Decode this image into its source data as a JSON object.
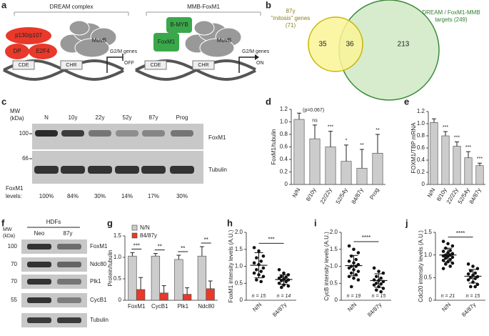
{
  "panel_labels": [
    "a",
    "b",
    "c",
    "d",
    "e",
    "f",
    "g",
    "h",
    "i",
    "j"
  ],
  "complexes": [
    {
      "title": "DREAM complex",
      "proteins": [
        "p130/p107",
        "DP",
        "E2F4",
        "MuvB"
      ],
      "elements": [
        "CDE",
        "CHR"
      ],
      "genes": "G2/M genes",
      "state": "OFF"
    },
    {
      "title": "MMB-FoxM1",
      "proteins": [
        "B-MYB",
        "FoxM1",
        "MuvB"
      ],
      "elements": [
        "CDE",
        "CHR"
      ],
      "genes": "G2/M genes",
      "state": "ON"
    }
  ],
  "venn": {
    "left_label": [
      "87y",
      "\"mitosis\" genes",
      "(71)"
    ],
    "right_label": [
      "DREAM / FoxM1-MMB",
      "targets (249)"
    ],
    "counts": [
      "35",
      "36",
      "213"
    ]
  },
  "blot_c": {
    "mw_label": [
      "MW",
      "(kDa)"
    ],
    "lanes": [
      "N",
      "10y",
      "22y",
      "52y",
      "87y",
      "Prog"
    ],
    "rows": [
      {
        "mw": "100",
        "name": "FoxM1"
      },
      {
        "mw": "66",
        "name": "Tubulin"
      }
    ],
    "levels_label": [
      "FoxM1",
      "levels:"
    ],
    "levels": [
      "100%",
      "84%",
      "30%",
      "14%",
      "17%",
      "30%"
    ]
  },
  "blot_f": {
    "header": "HDFs",
    "mw_label": [
      "MW",
      "(kDa)"
    ],
    "lanes": [
      "Neo",
      "87y"
    ],
    "rows": [
      {
        "mw": "100",
        "name": "FoxM1"
      },
      {
        "mw": "70",
        "name": "Ndc80"
      },
      {
        "mw": "70",
        "name": "Plk1"
      },
      {
        "mw": "55",
        "name": "CycB1"
      },
      {
        "mw": null,
        "name": "Tubulin"
      }
    ]
  },
  "chart_data": [
    {
      "type": "bar",
      "y_label": "FoxM1/tubulin",
      "categories": [
        "N/N",
        "8/10y",
        "22/22y",
        "52/54y",
        "84/87y",
        "Prog"
      ],
      "values": [
        1.04,
        0.73,
        0.6,
        0.37,
        0.26,
        0.5
      ],
      "errors": [
        0.1,
        0.22,
        0.25,
        0.26,
        0.3,
        0.3
      ],
      "color": "#cccccc",
      "annotations": [
        "(p=0.067)",
        "ns",
        "***",
        "*",
        "**",
        "**"
      ],
      "ylim": [
        0,
        1.2
      ],
      "yticks": [
        0,
        0.2,
        0.4,
        0.6,
        0.8,
        {
          "value": 1,
          "label": "1.0"
        },
        1.2
      ]
    },
    {
      "type": "bar",
      "y_label": "FOXM1/TBP mRNA",
      "categories": [
        "N/N",
        "8/10y",
        "22/22y",
        "52/54y",
        "84/87y"
      ],
      "values": [
        1.02,
        0.8,
        0.63,
        0.44,
        0.31
      ],
      "errors": [
        0.06,
        0.07,
        0.07,
        0.1,
        0.04
      ],
      "color": "#cccccc",
      "annotations": [
        null,
        "***",
        "***",
        "***",
        "***"
      ],
      "ylim": [
        0,
        1.2
      ],
      "yticks": [
        0,
        0.2,
        0.4,
        0.6,
        0.8,
        {
          "value": 1,
          "label": "1.0"
        },
        1.2
      ]
    },
    {
      "type": "bar",
      "y_label": "Protein/tubulin",
      "categories": [
        "FoxM1",
        "CycB1",
        "Plk1",
        "Ndc80"
      ],
      "series": [
        {
          "name": "N/N",
          "color": "#cccccc",
          "values": [
            1.03,
            1.03,
            0.95,
            1.03
          ],
          "errors": [
            0.08,
            0.06,
            0.1,
            0.22
          ]
        },
        {
          "name": "84/87y",
          "color": "#e8392a",
          "values": [
            0.25,
            0.17,
            0.14,
            0.27
          ],
          "errors": [
            0.28,
            0.17,
            0.15,
            0.18
          ]
        }
      ],
      "significance": [
        "***",
        "**",
        "**",
        "**"
      ],
      "ylim": [
        0,
        1.5
      ],
      "yticks": [
        0,
        0.5,
        {
          "value": 1,
          "label": "1.0"
        },
        1.5
      ]
    },
    {
      "type": "strip",
      "y_label": "FoxM1 intensity levels (A.U.)",
      "significance": "***",
      "series": [
        {
          "name": "N/N",
          "n_label": "n = 15",
          "mean": 1.03,
          "sd": 0.37,
          "values": [
            1.55,
            1.45,
            1.3,
            1.25,
            1.15,
            1.1,
            1.05,
            0.95,
            0.9,
            0.85,
            0.8,
            0.75,
            0.7,
            0.6,
            0.55
          ]
        },
        {
          "name": "84/87y",
          "n_label": "n = 14",
          "mean": 0.61,
          "sd": 0.14,
          "values": [
            0.9,
            0.8,
            0.75,
            0.7,
            0.68,
            0.65,
            0.62,
            0.6,
            0.58,
            0.55,
            0.5,
            0.45,
            0.42,
            0.38
          ]
        }
      ],
      "ylim": [
        0,
        2
      ],
      "yticks": [
        0,
        0.5,
        {
          "value": 1,
          "label": "1.0"
        },
        1.5,
        {
          "value": 2,
          "label": "2.0"
        }
      ]
    },
    {
      "type": "strip",
      "y_label": "CycB intensity levels (A.U.)",
      "significance": "****",
      "series": [
        {
          "name": "N/N",
          "n_label": "n = 19",
          "mean": 1.02,
          "sd": 0.3,
          "values": [
            1.6,
            1.5,
            1.4,
            1.3,
            1.2,
            1.15,
            1.1,
            1.05,
            1.0,
            1.0,
            0.95,
            0.9,
            0.85,
            0.8,
            0.75,
            0.7,
            0.65,
            0.6,
            0.4
          ]
        },
        {
          "name": "84/87y",
          "n_label": "n = 15",
          "mean": 0.58,
          "sd": 0.2,
          "values": [
            0.95,
            0.85,
            0.8,
            0.7,
            0.65,
            0.6,
            0.58,
            0.55,
            0.5,
            0.48,
            0.45,
            0.4,
            0.35,
            0.3,
            0.25
          ]
        }
      ],
      "ylim": [
        0,
        2
      ],
      "yticks": [
        0,
        0.5,
        {
          "value": 1,
          "label": "1.0"
        },
        1.5,
        {
          "value": 2,
          "label": "2.0"
        }
      ]
    },
    {
      "type": "strip",
      "y_label": "Cdc20 intensity levels (A.U.)",
      "significance": "****",
      "series": [
        {
          "name": "N/N",
          "n_label": "n = 21",
          "mean": 1.0,
          "sd": 0.15,
          "values": [
            1.3,
            1.25,
            1.2,
            1.15,
            1.1,
            1.08,
            1.05,
            1.03,
            1.0,
            1.0,
            0.98,
            0.97,
            0.95,
            0.93,
            0.9,
            0.88,
            0.85,
            0.82,
            0.8,
            0.75,
            0.7
          ]
        },
        {
          "name": "84/87y",
          "n_label": "n = 15",
          "mean": 0.53,
          "sd": 0.15,
          "values": [
            0.8,
            0.75,
            0.7,
            0.65,
            0.6,
            0.58,
            0.55,
            0.52,
            0.5,
            0.48,
            0.45,
            0.4,
            0.35,
            0.3,
            0.3
          ]
        }
      ],
      "ylim": [
        0,
        1.5
      ],
      "yticks": [
        0,
        0.5,
        {
          "value": 1,
          "label": "1.0"
        },
        1.5
      ]
    }
  ]
}
